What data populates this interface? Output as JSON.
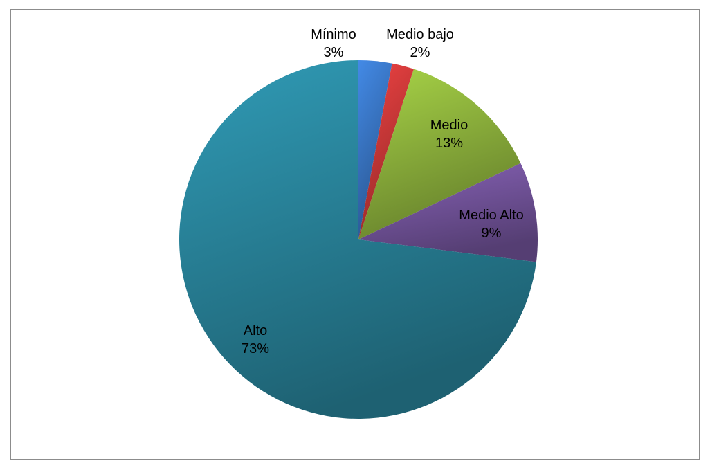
{
  "chart_data": {
    "type": "pie",
    "title": "",
    "slices": [
      {
        "name": "Mínimo",
        "value": 3,
        "label": "3%",
        "color": "#3a78c8"
      },
      {
        "name": "Medio bajo",
        "value": 2,
        "label": "2%",
        "color": "#d23a3a"
      },
      {
        "name": "Medio",
        "value": 13,
        "label": "13%",
        "color": "#92b83e"
      },
      {
        "name": "Medio Alto",
        "value": 9,
        "label": "9%",
        "color": "#7656a0"
      },
      {
        "name": "Alto",
        "value": 73,
        "label": "73%",
        "color": "#2a879e"
      }
    ],
    "legend": "none",
    "data_labels": "category-and-percent"
  }
}
